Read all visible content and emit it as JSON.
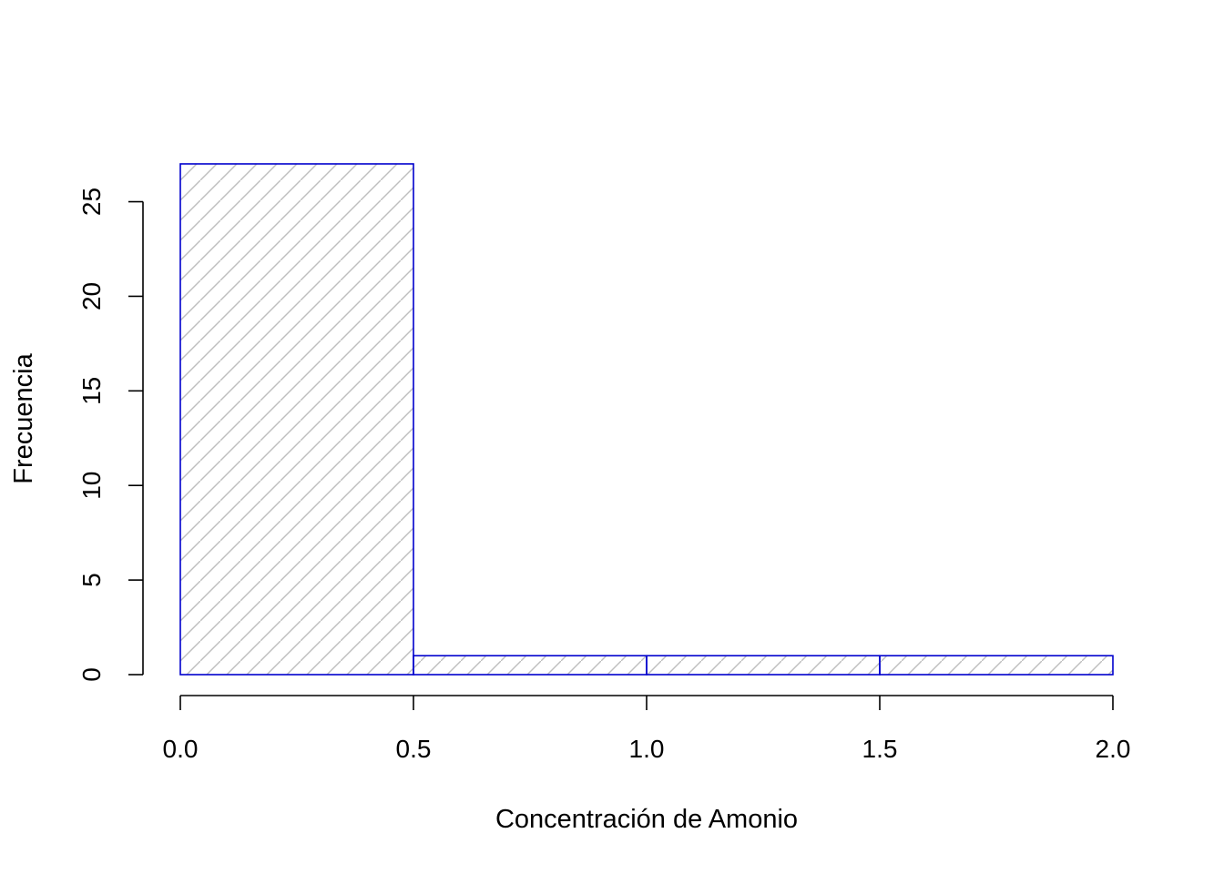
{
  "chart_data": {
    "type": "bar",
    "subtype": "histogram",
    "bins": [
      {
        "start": 0.0,
        "end": 0.5,
        "count": 27
      },
      {
        "start": 0.5,
        "end": 1.0,
        "count": 1
      },
      {
        "start": 1.0,
        "end": 1.5,
        "count": 1
      },
      {
        "start": 1.5,
        "end": 2.0,
        "count": 1
      }
    ],
    "xlabel": "Concentración de Amonio",
    "ylabel": "Frecuencia",
    "xlim": [
      0,
      2
    ],
    "ylim": [
      0,
      27
    ],
    "x_ticks": [
      0.0,
      0.5,
      1.0,
      1.5,
      2.0
    ],
    "x_tick_labels": [
      "0.0",
      "0.5",
      "1.0",
      "1.5",
      "2.0"
    ],
    "y_ticks": [
      0,
      5,
      10,
      15,
      20,
      25
    ],
    "y_tick_labels": [
      "0",
      "5",
      "10",
      "15",
      "20",
      "25"
    ],
    "grid": false,
    "fill_pattern": "diagonal-hatch",
    "colors": {
      "bar_border": "#0000cd",
      "hatch": "#bebebe",
      "axis": "#000000",
      "background": "#ffffff"
    }
  }
}
